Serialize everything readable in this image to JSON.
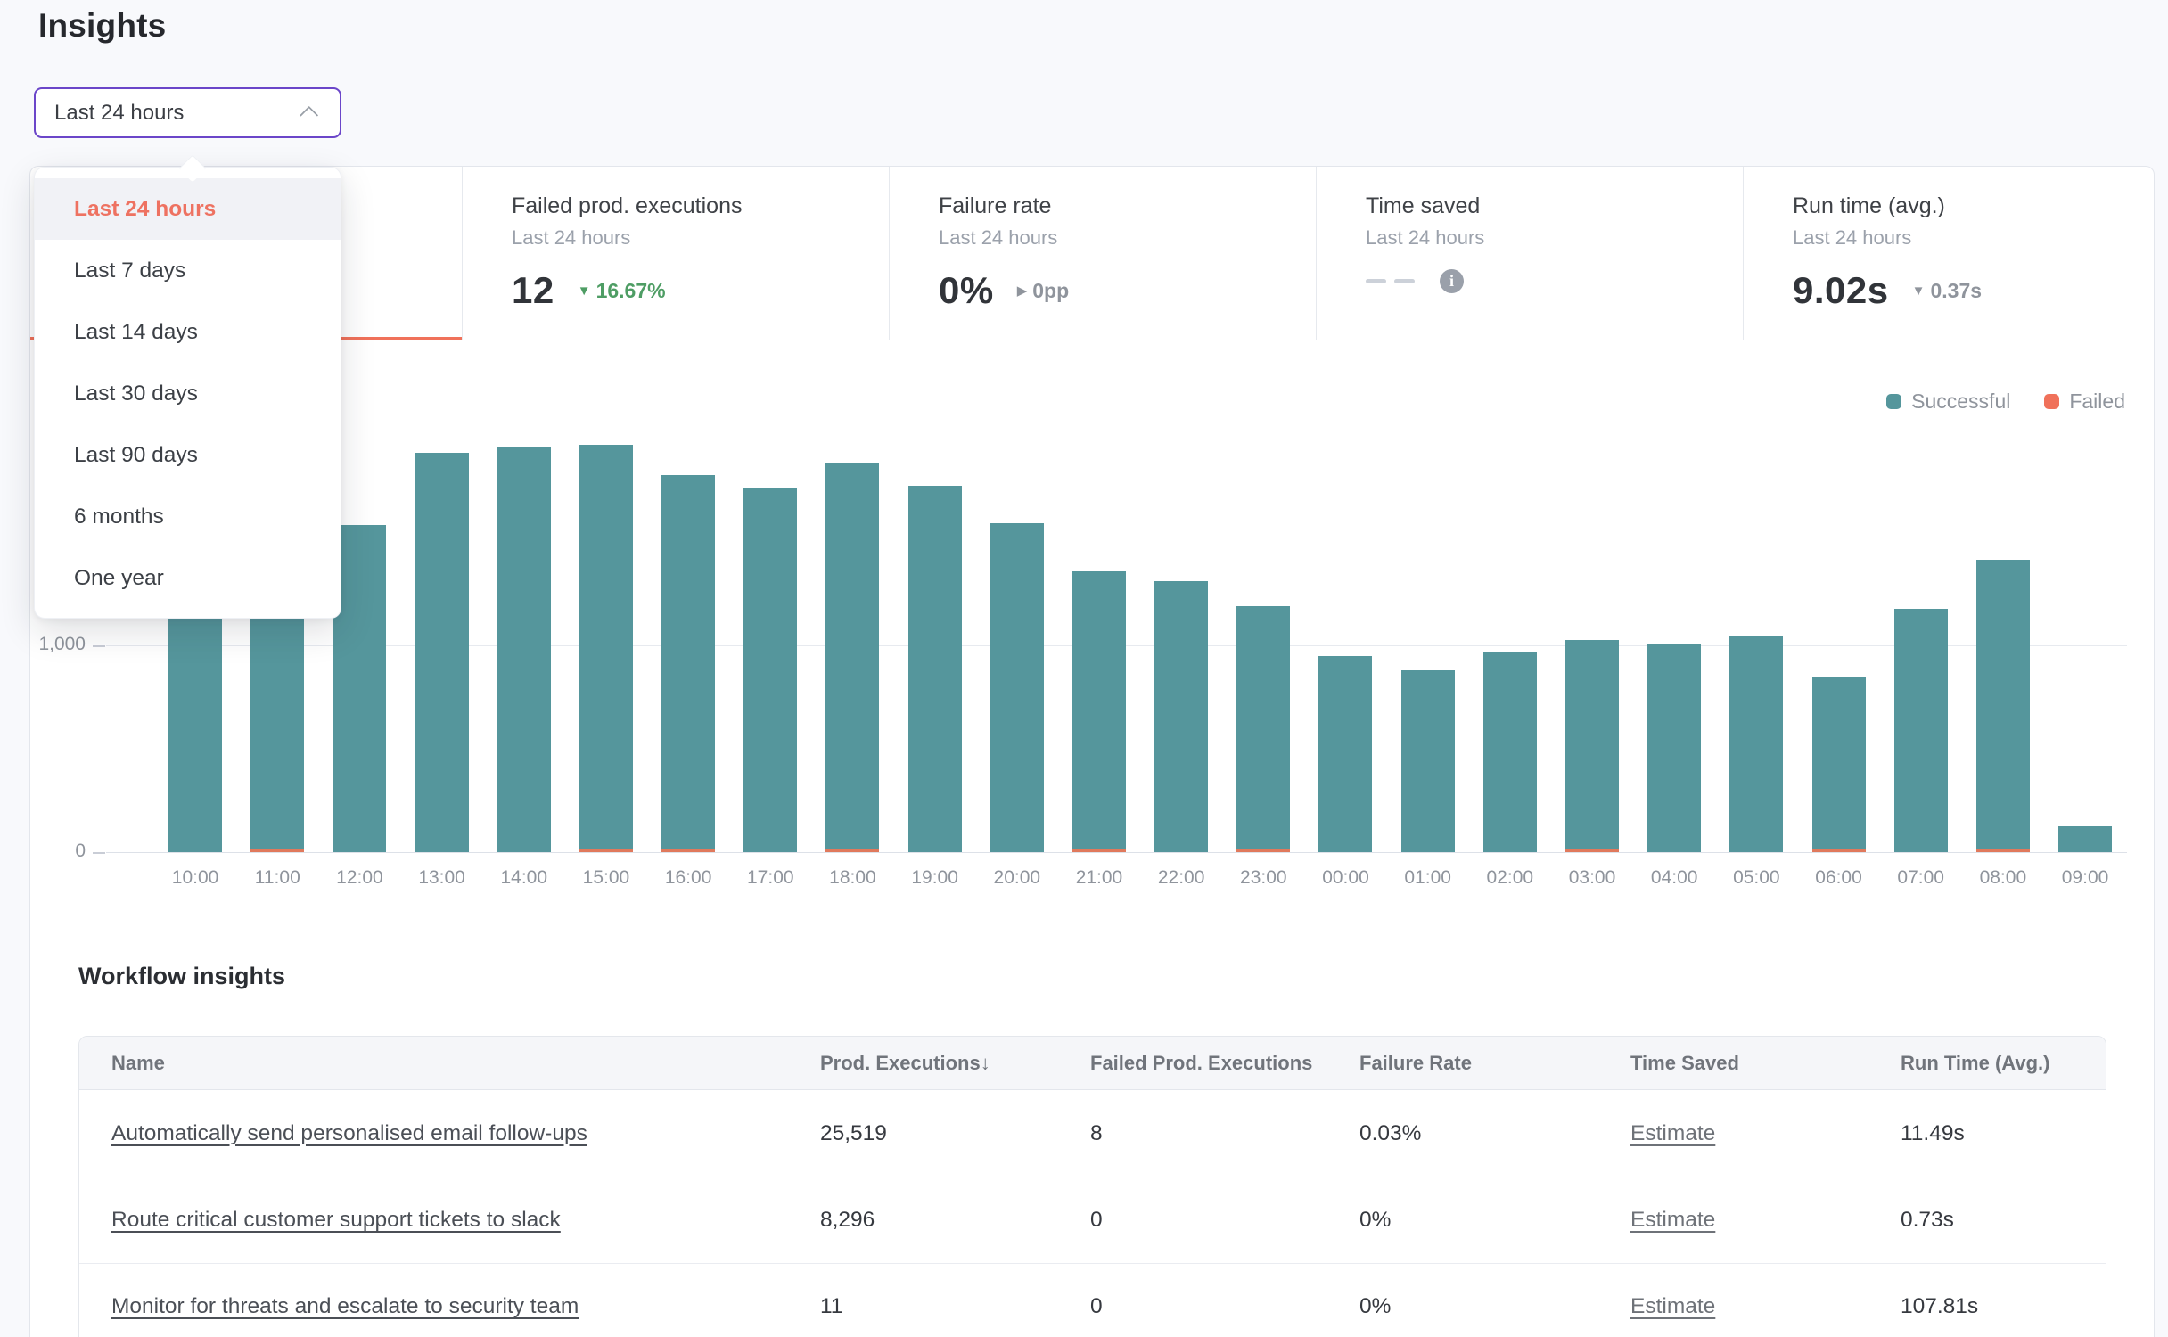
{
  "page": {
    "title": "Insights"
  },
  "time_range_picker": {
    "value": "Last 24 hours",
    "selected_option": "Last 24 hours",
    "options": [
      "Last 24 hours",
      "Last 7 days",
      "Last 14 days",
      "Last 30 days",
      "Last 90 days",
      "6 months",
      "One year"
    ]
  },
  "summary_cards": [
    {
      "title": "",
      "subtitle": "",
      "value": "",
      "active": true
    },
    {
      "title": "Failed prod. executions",
      "subtitle": "Last 24 hours",
      "value": "12",
      "delta": "16.67%",
      "delta_direction": "down",
      "delta_tone": "green"
    },
    {
      "title": "Failure rate",
      "subtitle": "Last 24 hours",
      "value": "0%",
      "delta": "0pp",
      "delta_direction": "flat",
      "delta_tone": "gray"
    },
    {
      "title": "Time saved",
      "subtitle": "Last 24 hours",
      "value": "--",
      "has_info_icon": true
    },
    {
      "title": "Run time (avg.)",
      "subtitle": "Last 24 hours",
      "value": "9.02s",
      "delta": "0.37s",
      "delta_direction": "down",
      "delta_tone": "gray"
    }
  ],
  "chart_data": {
    "type": "bar",
    "stacked": true,
    "categories": [
      "10:00",
      "11:00",
      "12:00",
      "13:00",
      "14:00",
      "15:00",
      "16:00",
      "17:00",
      "18:00",
      "19:00",
      "20:00",
      "21:00",
      "22:00",
      "23:00",
      "00:00",
      "01:00",
      "02:00",
      "03:00",
      "04:00",
      "05:00",
      "06:00",
      "07:00",
      "08:00",
      "09:00"
    ],
    "series": [
      {
        "name": "Successful",
        "color": "#55969c",
        "values": [
          1450,
          1500,
          1580,
          1930,
          1960,
          1955,
          1810,
          1765,
          1870,
          1770,
          1590,
          1345,
          1310,
          1175,
          950,
          880,
          970,
          1015,
          1005,
          1045,
          835,
          1175,
          1400,
          125
        ]
      },
      {
        "name": "Failed",
        "color": "#f0715a",
        "values": [
          0,
          2,
          0,
          0,
          0,
          1,
          2,
          0,
          1,
          0,
          0,
          1,
          0,
          2,
          0,
          0,
          0,
          1,
          0,
          0,
          1,
          0,
          1,
          0
        ]
      }
    ],
    "title": "",
    "xlabel": "",
    "ylabel": "",
    "ylim": [
      0,
      2000
    ],
    "yticks": [
      {
        "label": "0",
        "value": 0
      },
      {
        "label": "1,000",
        "value": 1000
      },
      {
        "label": "2,000",
        "value": 2000
      }
    ],
    "grid": "horizontal",
    "legend_position": "top-right"
  },
  "workflow_insights": {
    "heading": "Workflow insights",
    "table": {
      "columns": [
        {
          "label": "Name",
          "sorted": null
        },
        {
          "label": "Prod. Executions",
          "sorted": "desc",
          "sort_arrow": "↓"
        },
        {
          "label": "Failed Prod. Executions",
          "sorted": null
        },
        {
          "label": "Failure Rate",
          "sorted": null
        },
        {
          "label": "Time Saved",
          "sorted": null
        },
        {
          "label": "Run Time (Avg.)",
          "sorted": null
        }
      ],
      "rows": [
        {
          "name": "Automatically send personalised email follow-ups",
          "prod_executions": "25,519",
          "failed_prod_executions": "8",
          "failure_rate": "0.03%",
          "time_saved": "Estimate",
          "run_time_avg": "11.49s"
        },
        {
          "name": "Route critical customer support tickets to slack",
          "prod_executions": "8,296",
          "failed_prod_executions": "0",
          "failure_rate": "0%",
          "time_saved": "Estimate",
          "run_time_avg": "0.73s"
        },
        {
          "name": "Monitor for threats and escalate to security team",
          "prod_executions": "11",
          "failed_prod_executions": "0",
          "failure_rate": "0%",
          "time_saved": "Estimate",
          "run_time_avg": "107.81s"
        }
      ]
    }
  },
  "colors": {
    "accent_orange": "#f0715a",
    "teal_successful": "#55969c",
    "green_positive": "#4e9d64",
    "focus_purple": "#6b46c9",
    "text_gray": "#8f949c"
  }
}
